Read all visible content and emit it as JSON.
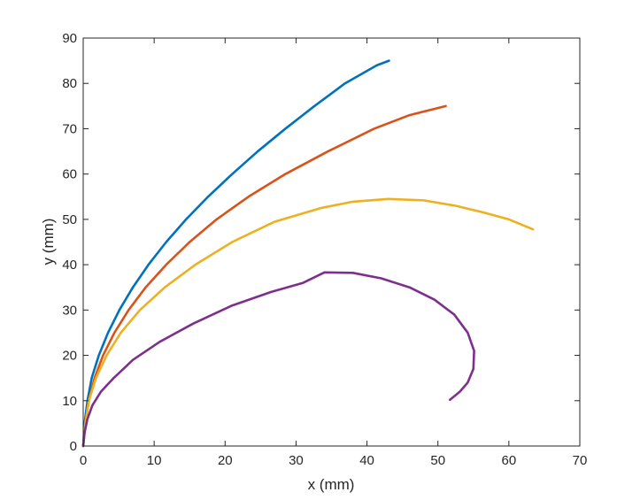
{
  "chart_data": {
    "type": "line",
    "title": "",
    "xlabel": "x (mm)",
    "ylabel": "y (mm)",
    "xlim": [
      0,
      70
    ],
    "ylim": [
      0,
      90
    ],
    "xticks": [
      0,
      10,
      20,
      30,
      40,
      50,
      60,
      70
    ],
    "yticks": [
      0,
      10,
      20,
      30,
      40,
      50,
      60,
      70,
      80,
      90
    ],
    "grid": false,
    "series": [
      {
        "color": "#0072BD",
        "x": [
          0,
          0.2,
          0.6,
          1.2,
          2.2,
          3.5,
          5.1,
          7.0,
          9.2,
          11.7,
          14.5,
          17.6,
          21.0,
          24.6,
          28.5,
          32.6,
          36.9,
          41.4,
          43.1
        ],
        "y": [
          0,
          5,
          10,
          15,
          20,
          25,
          30,
          35,
          40,
          45,
          50,
          55,
          60,
          65,
          70,
          75,
          80,
          84,
          85
        ]
      },
      {
        "color": "#D95319",
        "x": [
          0,
          0.3,
          0.8,
          1.6,
          2.8,
          4.4,
          6.4,
          8.8,
          11.7,
          15.0,
          18.8,
          23.3,
          28.5,
          34.5,
          41.0,
          46.0,
          51.1
        ],
        "y": [
          0,
          5,
          10,
          15,
          20,
          25,
          30,
          35,
          40,
          45,
          50,
          55,
          60,
          65,
          70,
          73,
          75
        ]
      },
      {
        "color": "#EDB120",
        "x": [
          0,
          0.3,
          0.8,
          1.8,
          3.3,
          5.3,
          8.0,
          11.5,
          15.8,
          21.0,
          27.0,
          33.5,
          38.0,
          43.0,
          48.0,
          52.5,
          56.5,
          60.0,
          63.4
        ],
        "y": [
          0,
          5,
          10,
          15,
          20,
          25,
          30,
          35,
          40,
          45,
          49.5,
          52.5,
          53.9,
          54.5,
          54.2,
          53.0,
          51.5,
          50.0,
          47.8
        ]
      },
      {
        "color": "#7E2F8E",
        "x": [
          0,
          0.2,
          0.6,
          1.3,
          2.5,
          4.3,
          7.0,
          10.8,
          15.5,
          21.0,
          26.5,
          31.0,
          34.0,
          38.0,
          42.0,
          46.0,
          49.5,
          52.3,
          54.2,
          55.1,
          55.0,
          54.2,
          53.1,
          51.7
        ],
        "y": [
          0,
          3,
          6,
          9,
          12,
          15,
          19,
          23,
          27,
          31,
          34,
          36,
          38.3,
          38.2,
          37.0,
          35.0,
          32.3,
          29.0,
          25.0,
          21.0,
          17.0,
          14.0,
          12.0,
          10.2
        ]
      }
    ]
  }
}
